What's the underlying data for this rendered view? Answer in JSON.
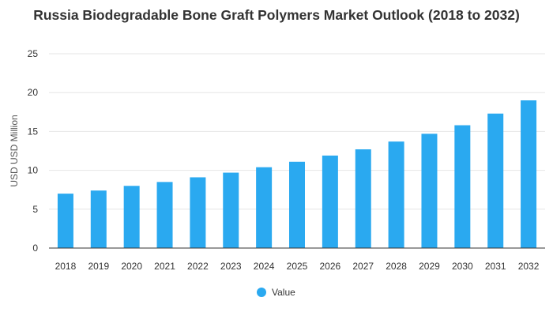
{
  "chart_data": {
    "type": "bar",
    "title": "Russia Biodegradable Bone Graft Polymers Market Outlook (2018 to 2032)",
    "ylabel": "USD USD Million",
    "xlabel": "",
    "categories": [
      "2018",
      "2019",
      "2020",
      "2021",
      "2022",
      "2023",
      "2024",
      "2025",
      "2026",
      "2027",
      "2028",
      "2029",
      "2030",
      "2031",
      "2032"
    ],
    "series": [
      {
        "name": "Value",
        "color": "#2aa9f0",
        "values": [
          7.0,
          7.4,
          8.0,
          8.5,
          9.1,
          9.7,
          10.4,
          11.1,
          11.9,
          12.7,
          13.7,
          14.7,
          15.8,
          17.3,
          19.0
        ]
      }
    ],
    "ylim": [
      0,
      25
    ],
    "yticks": [
      0,
      5,
      10,
      15,
      20,
      25
    ],
    "grid": true,
    "legend_position": "bottom-center"
  }
}
